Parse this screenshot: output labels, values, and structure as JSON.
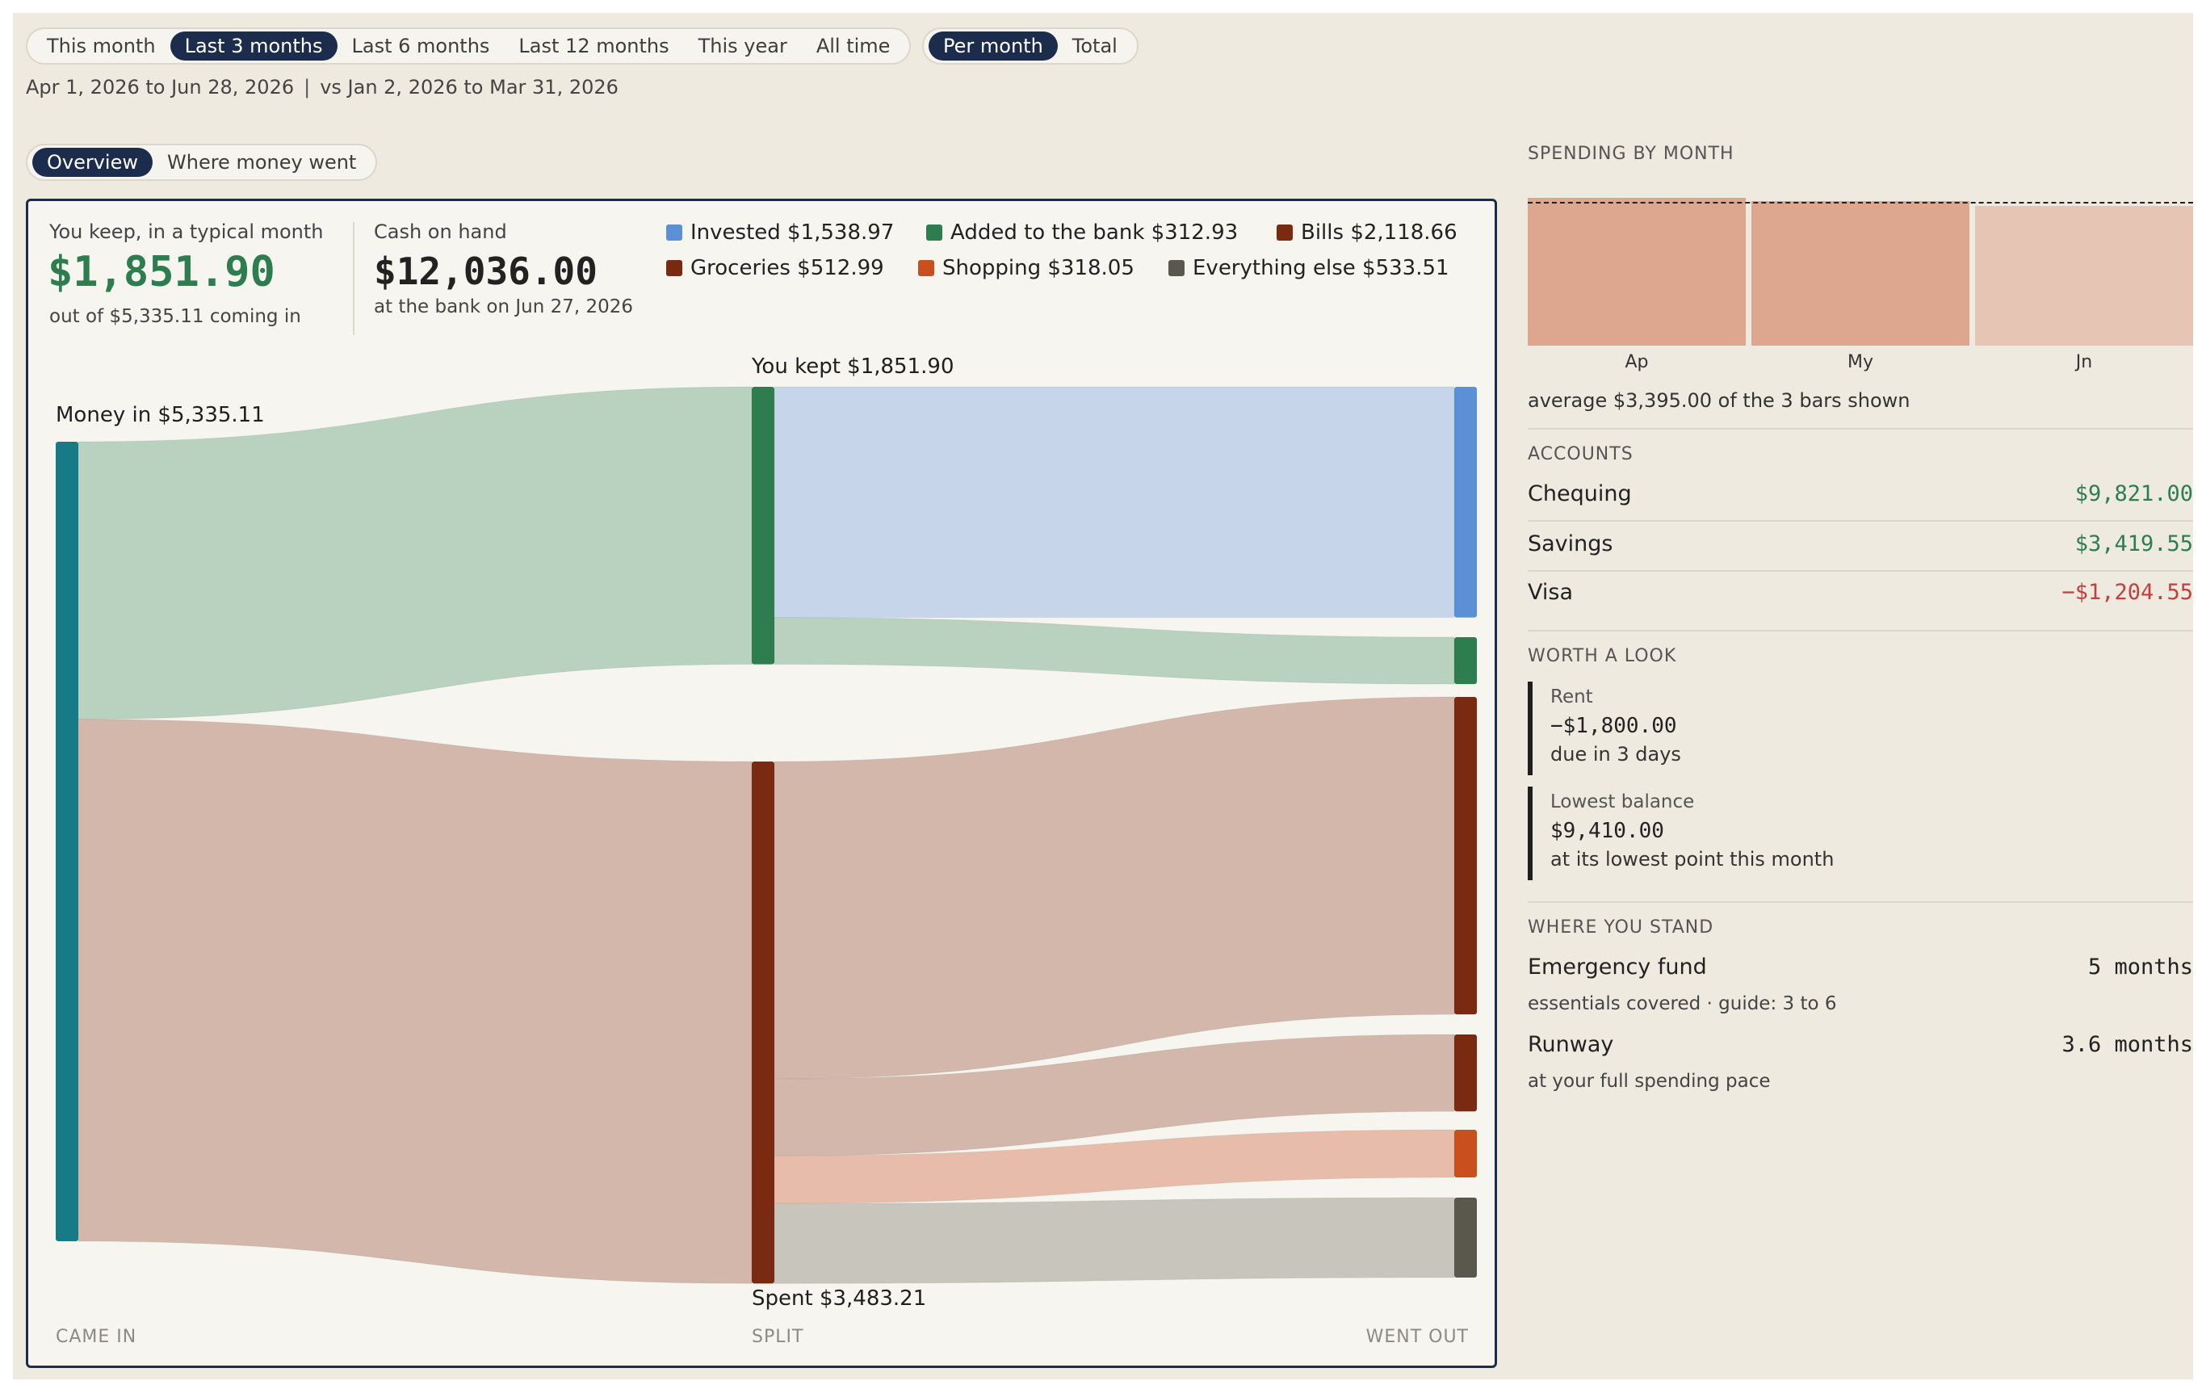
{
  "period_tabs": [
    "This month",
    "Last 3 months",
    "Last 6 months",
    "Last 12 months",
    "This year",
    "All time"
  ],
  "period_active": "Last 3 months",
  "mode_tabs": [
    "Per month",
    "Total"
  ],
  "mode_active": "Per month",
  "date_range": "Apr 1, 2026 to Jun 28, 2026",
  "separator": "|",
  "compare_range": "vs Jan 2, 2026 to Mar 31, 2026",
  "view_tabs": [
    "Overview",
    "Where money went"
  ],
  "view_active": "Overview",
  "kpi": {
    "keep_label": "You keep, in a typical month",
    "keep_value": "$1,851.90",
    "keep_sub": "out of $5,335.11 coming in",
    "cash_label": "Cash on hand",
    "cash_value": "$12,036.00",
    "cash_sub": "at the bank on Jun 27, 2026"
  },
  "legend": [
    {
      "label": "Invested $1,538.97",
      "color": "#5b8fd6"
    },
    {
      "label": "Added to the bank $312.93",
      "color": "#2e7d4f"
    },
    {
      "label": "Bills $2,118.66",
      "color": "#7a2a10"
    },
    {
      "label": "Groceries $512.99",
      "color": "#7a2a10"
    },
    {
      "label": "Shopping $318.05",
      "color": "#c8501e"
    },
    {
      "label": "Everything else $533.51",
      "color": "#5a574d"
    }
  ],
  "flow": {
    "money_in_label": "Money in $5,335.11",
    "kept_label": "You kept $1,851.90",
    "spent_label": "Spent $3,483.21",
    "axis_came_in": "CAME IN",
    "axis_split": "SPLIT",
    "axis_went_out": "WENT OUT"
  },
  "chart_data": {
    "type": "sankey",
    "nodes": [
      {
        "name": "Money in",
        "value": 5335.11,
        "color": "#177a87"
      },
      {
        "name": "You kept",
        "value": 1851.9,
        "color": "#2e7d4f"
      },
      {
        "name": "Spent",
        "value": 3483.21,
        "color": "#7a2a10"
      },
      {
        "name": "Invested",
        "value": 1538.97,
        "color": "#5b8fd6"
      },
      {
        "name": "Added to the bank",
        "value": 312.93,
        "color": "#2e7d4f"
      },
      {
        "name": "Bills",
        "value": 2118.66,
        "color": "#7a2a10"
      },
      {
        "name": "Groceries",
        "value": 512.99,
        "color": "#7a2a10"
      },
      {
        "name": "Shopping",
        "value": 318.05,
        "color": "#c8501e"
      },
      {
        "name": "Everything else",
        "value": 533.51,
        "color": "#5a574d"
      }
    ],
    "links": [
      {
        "source": "Money in",
        "target": "You kept",
        "value": 1851.9,
        "color": "#b9d1bf"
      },
      {
        "source": "Money in",
        "target": "Spent",
        "value": 3483.21,
        "color": "#d2b7aa"
      },
      {
        "source": "You kept",
        "target": "Invested",
        "value": 1538.97,
        "color": "#c6d5e9"
      },
      {
        "source": "You kept",
        "target": "Added to the bank",
        "value": 312.93,
        "color": "#b9d1bf"
      },
      {
        "source": "Spent",
        "target": "Bills",
        "value": 2118.66,
        "color": "#d2b7aa"
      },
      {
        "source": "Spent",
        "target": "Groceries",
        "value": 512.99,
        "color": "#d2b7aa"
      },
      {
        "source": "Spent",
        "target": "Shopping",
        "value": 318.05,
        "color": "#e7bcab"
      },
      {
        "source": "Spent",
        "target": "Everything else",
        "value": 533.51,
        "color": "#c8c5bc"
      }
    ]
  },
  "spending_by_month": {
    "title": "SPENDING BY MONTH",
    "type": "bar",
    "categories": [
      "Ap",
      "My",
      "Jn"
    ],
    "values": [
      3480,
      3410,
      3295
    ],
    "average": 3395.0,
    "colors": [
      "#dca68f",
      "#dca68f",
      "#e7c5b4"
    ],
    "avg_text": "average $3,395.00 of the 3 bars shown"
  },
  "accounts": {
    "title": "ACCOUNTS",
    "items": [
      {
        "name": "Chequing",
        "value": "$9,821.00",
        "tone": "green"
      },
      {
        "name": "Savings",
        "value": "$3,419.55",
        "tone": "green"
      },
      {
        "name": "Visa",
        "value": "−$1,204.55",
        "tone": "red"
      }
    ]
  },
  "worth_a_look": {
    "title": "WORTH A LOOK",
    "items": [
      {
        "label": "Rent",
        "value": "−$1,800.00",
        "note": "due in 3 days"
      },
      {
        "label": "Lowest balance",
        "value": "$9,410.00",
        "note": "at its lowest point this month"
      }
    ]
  },
  "where_you_stand": {
    "title": "WHERE YOU STAND",
    "items": [
      {
        "name": "Emergency fund",
        "value": "5 months",
        "note": "essentials covered · guide: 3 to 6"
      },
      {
        "name": "Runway",
        "value": "3.6 months",
        "note": "at your full spending pace"
      }
    ]
  }
}
